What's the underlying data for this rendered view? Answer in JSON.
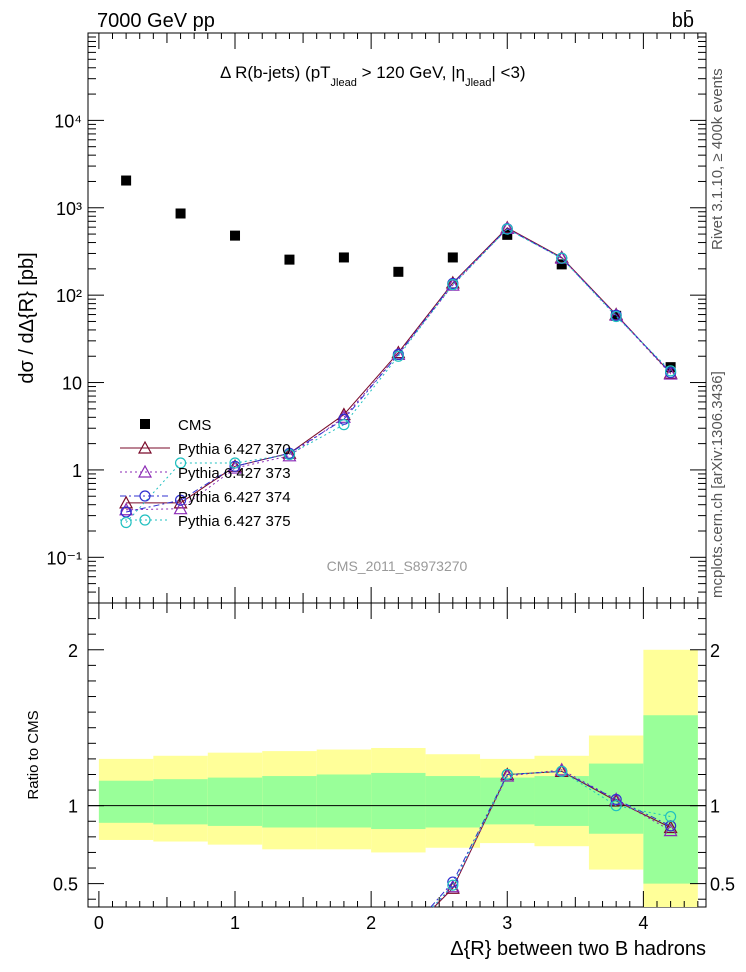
{
  "header": {
    "energy_label": "7000 GeV pp",
    "process_label": "bb̄"
  },
  "side_labels": {
    "rivet": "Rivet 3.1.10, ≥ 400k events",
    "mcplots": "mcplots.cern.ch [arXiv:1306.3436]"
  },
  "chart_data": [
    {
      "type": "scatter",
      "title": "Δ R(b-jets) (pT_Jlead > 120 GeV, |η_Jlead| <3)",
      "title_main": "Δ R(b-jets) (pT",
      "title_sub1": "Jlead",
      "title_mid": " > 120 GeV, |η",
      "title_sub2": "Jlead",
      "title_end": "| <3)",
      "ylabel": "dσ / dΔ{R} [pb]",
      "xlabel": "Δ{R} between two B hadrons",
      "analysis_id": "CMS_2011_S8973270",
      "yscale": "log",
      "xlim": [
        -0.08,
        4.46
      ],
      "ylim": [
        0.03,
        100000
      ],
      "y_tick_labels": [
        "10⁻¹",
        "1",
        "10",
        "10²",
        "10³",
        "10⁴"
      ],
      "y_tick_values": [
        0.1,
        1,
        10,
        100,
        1000,
        10000
      ],
      "x": [
        0.2,
        0.6,
        1.0,
        1.4,
        1.8,
        2.2,
        2.6,
        3.0,
        3.4,
        3.8,
        4.2
      ],
      "series": [
        {
          "name": "CMS",
          "color": "#000000",
          "marker": "square",
          "values": [
            2050,
            860,
            480,
            255,
            270,
            185,
            270,
            490,
            225,
            58,
            15
          ]
        },
        {
          "name": "Pythia 6.427 370",
          "color": "#7a0a2a",
          "marker": "triangle",
          "line": "solid",
          "values": [
            0.42,
            0.42,
            1.1,
            1.55,
            4.3,
            22,
            138,
            590,
            270,
            60,
            12.8
          ]
        },
        {
          "name": "Pythia 6.427 373",
          "color": "#8b2ab5",
          "marker": "triangle",
          "line": "dotted",
          "values": [
            0.35,
            0.36,
            1.05,
            1.45,
            4.0,
            21,
            130,
            580,
            265,
            59,
            12.5
          ]
        },
        {
          "name": "Pythia 6.427 374",
          "color": "#3030d0",
          "marker": "circle",
          "line": "dashdot",
          "values": [
            0.33,
            0.45,
            1.1,
            1.55,
            3.8,
            21,
            136,
            575,
            265,
            59,
            13.0
          ]
        },
        {
          "name": "Pythia 6.427 375",
          "color": "#20c0c0",
          "marker": "circle",
          "line": "dotted",
          "values": [
            0.25,
            1.2,
            1.2,
            1.5,
            3.3,
            20,
            132,
            570,
            265,
            57,
            13.6
          ]
        }
      ]
    },
    {
      "type": "line",
      "ylabel": "Ratio to CMS",
      "xlabel": "Δ{R} between two B hadrons",
      "xlim": [
        -0.08,
        4.46
      ],
      "ylim": [
        0.35,
        2.3
      ],
      "y_tick_values": [
        0.5,
        1,
        2
      ],
      "y_tick_labels": [
        "0.5",
        "1",
        "2"
      ],
      "x_tick_values": [
        0,
        1,
        2,
        3,
        4
      ],
      "x_tick_labels": [
        "0",
        "1",
        "2",
        "3",
        "4"
      ],
      "bin_edges": [
        0.0,
        0.4,
        0.8,
        1.2,
        1.6,
        2.0,
        2.4,
        2.8,
        3.2,
        3.6,
        4.0,
        4.4
      ],
      "band_yellow": [
        [
          0.78,
          1.3
        ],
        [
          0.77,
          1.32
        ],
        [
          0.75,
          1.34
        ],
        [
          0.72,
          1.35
        ],
        [
          0.72,
          1.36
        ],
        [
          0.7,
          1.37
        ],
        [
          0.73,
          1.33
        ],
        [
          0.76,
          1.3
        ],
        [
          0.74,
          1.32
        ],
        [
          0.59,
          1.45
        ],
        [
          0.35,
          2.0
        ]
      ],
      "band_green": [
        [
          0.89,
          1.16
        ],
        [
          0.88,
          1.17
        ],
        [
          0.87,
          1.18
        ],
        [
          0.86,
          1.19
        ],
        [
          0.86,
          1.2
        ],
        [
          0.85,
          1.21
        ],
        [
          0.86,
          1.19
        ],
        [
          0.88,
          1.18
        ],
        [
          0.87,
          1.19
        ],
        [
          0.82,
          1.27
        ],
        [
          0.5,
          1.58
        ]
      ],
      "series": [
        {
          "name": "Pythia 6.427 370",
          "color": "#7a0a2a",
          "values": [
            null,
            null,
            null,
            null,
            null,
            null,
            0.47,
            1.2,
            1.22,
            1.03,
            0.86
          ]
        },
        {
          "name": "Pythia 6.427 373",
          "color": "#8b2ab5",
          "values": [
            null,
            null,
            null,
            null,
            null,
            null,
            0.48,
            1.19,
            1.23,
            1.04,
            0.84
          ]
        },
        {
          "name": "Pythia 6.427 374",
          "color": "#3030d0",
          "values": [
            null,
            null,
            null,
            null,
            null,
            null,
            0.51,
            1.2,
            1.22,
            1.04,
            0.87
          ]
        },
        {
          "name": "Pythia 6.427 375",
          "color": "#20c0c0",
          "values": [
            null,
            null,
            null,
            null,
            null,
            null,
            0.49,
            1.2,
            1.22,
            1.0,
            0.93
          ]
        }
      ]
    }
  ]
}
